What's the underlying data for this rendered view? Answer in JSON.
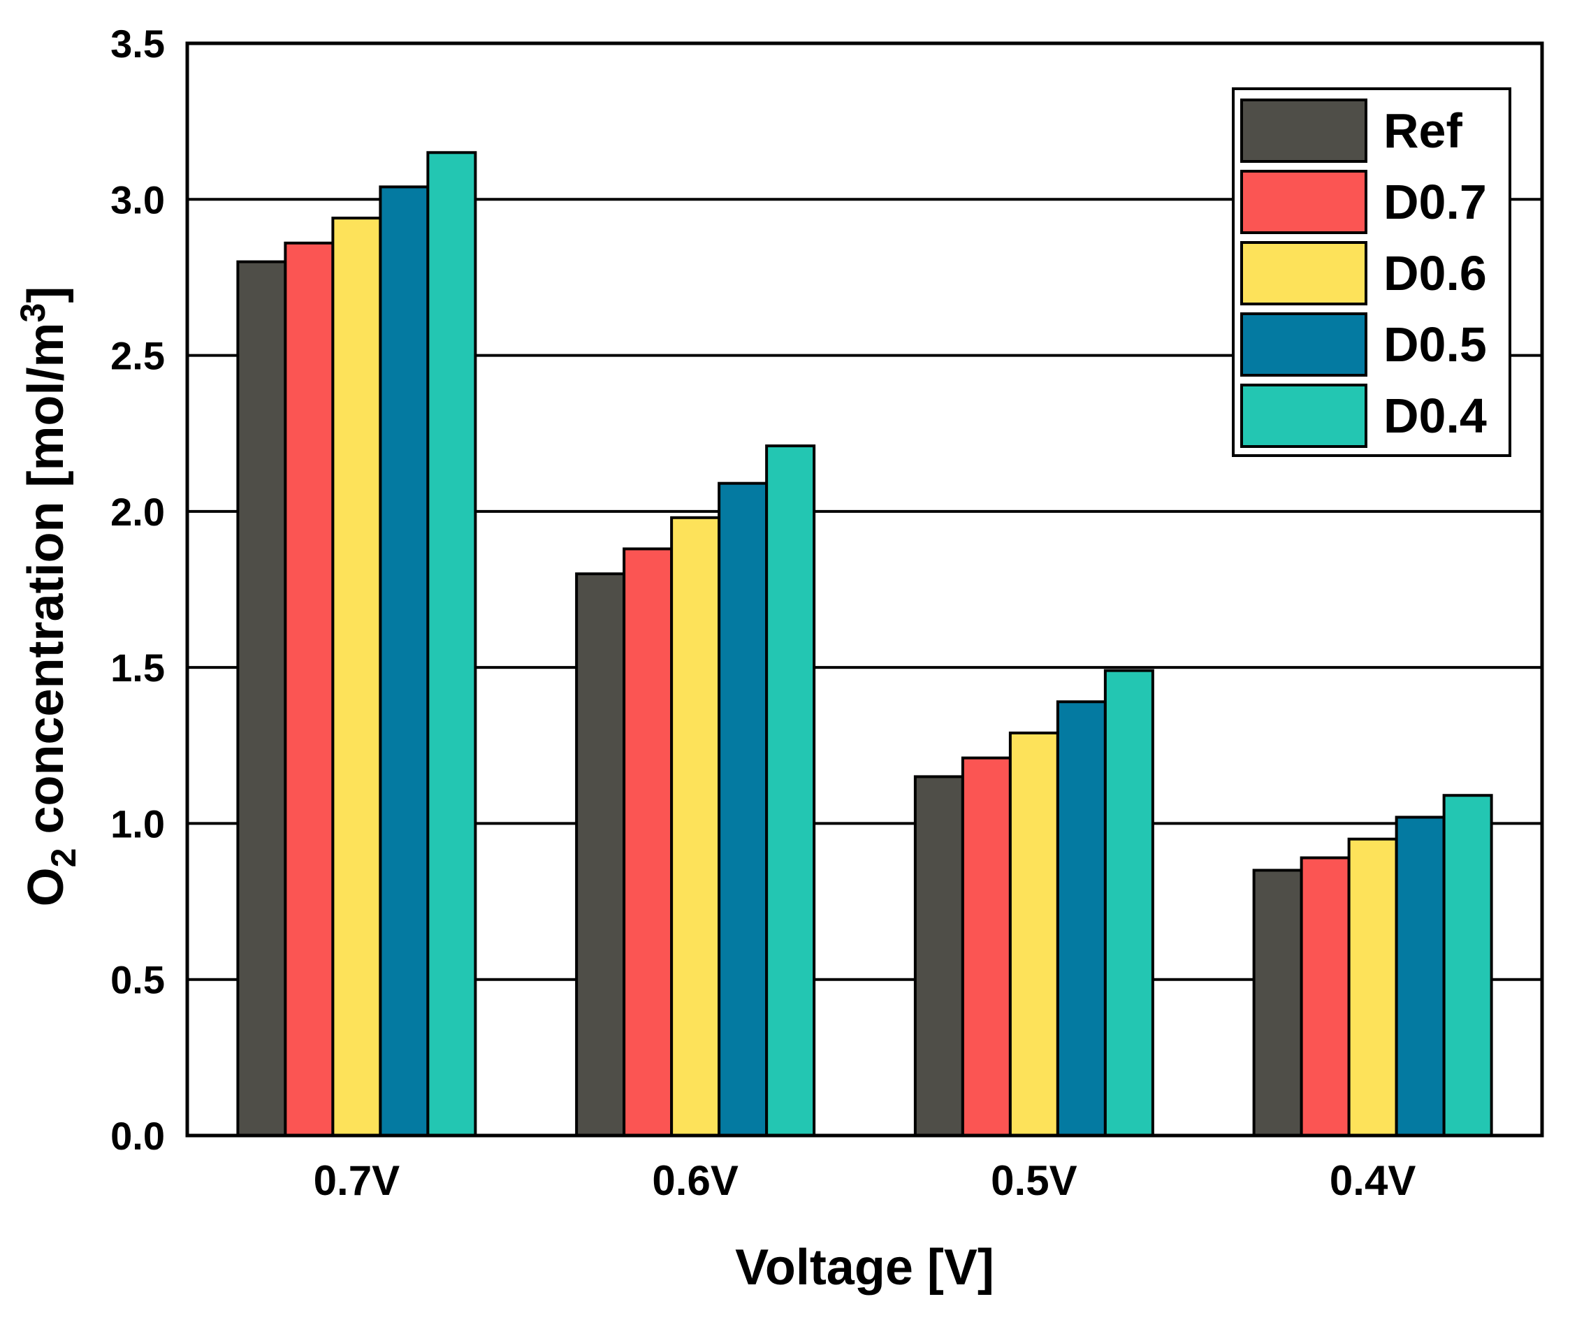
{
  "chart_data": {
    "type": "bar",
    "xlabel": "Voltage [V]",
    "ylabel": {
      "prefix": "O",
      "sub": "2",
      "middle": " concentration [mol/m",
      "sup": "3",
      "suffix": "]"
    },
    "categories": [
      "0.7V",
      "0.6V",
      "0.5V",
      "0.4V"
    ],
    "ylim": [
      0,
      3.5
    ],
    "yticks": [
      "0.0",
      "0.5",
      "1.0",
      "1.5",
      "2.0",
      "2.5",
      "3.0",
      "3.5"
    ],
    "grid": "horizontal",
    "legend_position": "top-right",
    "series": [
      {
        "name": "Ref",
        "color": "#4f4e48",
        "values": [
          2.8,
          1.8,
          1.15,
          0.85
        ]
      },
      {
        "name": "D0.7",
        "color": "#fb5553",
        "values": [
          2.86,
          1.88,
          1.21,
          0.89
        ]
      },
      {
        "name": "D0.6",
        "color": "#fde25a",
        "values": [
          2.94,
          1.98,
          1.29,
          0.95
        ]
      },
      {
        "name": "D0.5",
        "color": "#047aa1",
        "values": [
          3.04,
          2.09,
          1.39,
          1.02
        ]
      },
      {
        "name": "D0.4",
        "color": "#23c6b2",
        "values": [
          3.15,
          2.21,
          1.49,
          1.09
        ]
      }
    ]
  }
}
